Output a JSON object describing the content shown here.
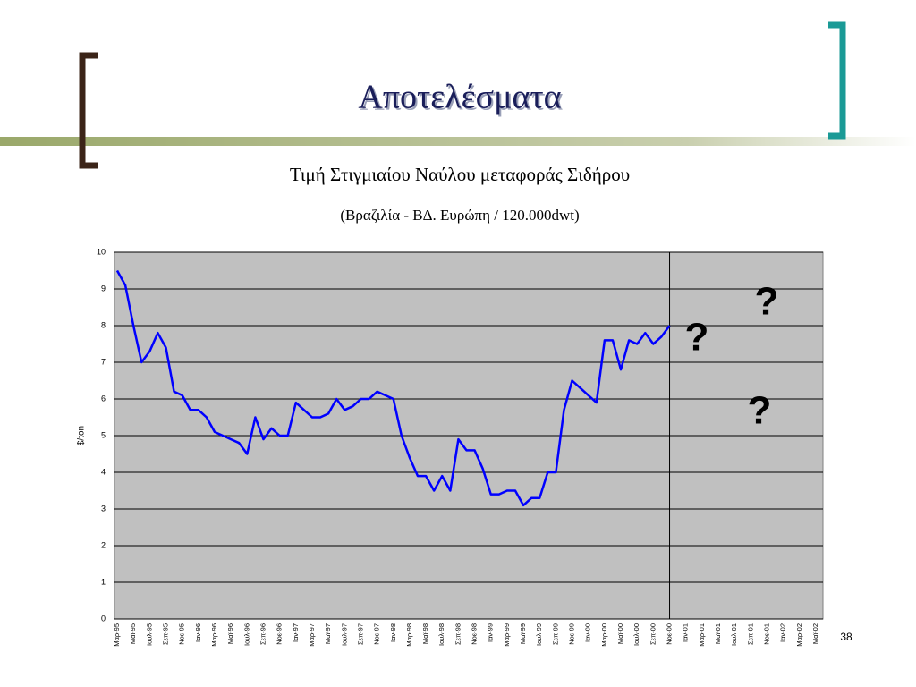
{
  "slide_title": "Αποτελέσματα",
  "slide_number": "38",
  "chart_data": {
    "type": "line",
    "title": "Τιμή Στιγμιαίου Ναύλου μεταφοράς Σιδήρου",
    "subtitle": "(Βραζιλία - ΒΔ. Ευρώπη / 120.000dwt)",
    "y_label": "$/ton",
    "categories": [
      "Μαρ-95",
      null,
      "Μαϊ-95",
      null,
      "Ιουλ-95",
      null,
      "Σεπ-95",
      null,
      "Νοε-95",
      null,
      "Ιαν-96",
      null,
      "Μαρ-96",
      null,
      "Μαϊ-96",
      null,
      "Ιουλ-96",
      null,
      "Σεπ-96",
      null,
      "Νοε-96",
      null,
      "Ιαν-97",
      null,
      "Μαρ-97",
      null,
      "Μαϊ-97",
      null,
      "Ιουλ-97",
      null,
      "Σεπ-97",
      null,
      "Νοε-97",
      null,
      "Ιαν-98",
      null,
      "Μαρ-98",
      null,
      "Μαϊ-98",
      null,
      "Ιουλ-98",
      null,
      "Σεπ-98",
      null,
      "Νοε-98",
      null,
      "Ιαν-99",
      null,
      "Μαρ-99",
      null,
      "Μαϊ-99",
      null,
      "Ιουλ-99",
      null,
      "Σεπ-99",
      null,
      "Νοε-99",
      null,
      "Ιαν-00",
      null,
      "Μαρ-00",
      null,
      "Μαϊ-00",
      null,
      "Ιουλ-00",
      null,
      "Σεπ-00",
      null,
      "Νοε-00",
      null,
      "Ιαν-01",
      null,
      "Μαρ-01",
      null,
      "Μαϊ-01",
      null,
      "Ιουλ-01",
      null,
      "Σεπ-01",
      null,
      "Νοε-01",
      null,
      "Ιαν-02",
      null,
      "Μαρ-02",
      null,
      "Μαϊ-02"
    ],
    "series": [
      {
        "name": null,
        "color": "#0000ff",
        "values": [
          9.5,
          9.1,
          8.0,
          7.0,
          7.3,
          7.8,
          7.4,
          6.2,
          6.1,
          5.7,
          5.7,
          5.5,
          5.1,
          5.0,
          4.9,
          4.8,
          4.5,
          5.5,
          4.9,
          5.2,
          5.0,
          5.0,
          5.9,
          5.7,
          5.5,
          5.5,
          5.6,
          6.0,
          5.7,
          5.8,
          6.0,
          6.0,
          6.2,
          6.1,
          6.0,
          5.0,
          4.4,
          3.9,
          3.9,
          3.5,
          3.9,
          3.5,
          4.9,
          4.6,
          4.6,
          4.1,
          3.4,
          3.4,
          3.5,
          3.5,
          3.1,
          3.3,
          3.3,
          4.0,
          4.0,
          5.7,
          6.5,
          6.3,
          6.1,
          5.9,
          7.6,
          7.6,
          6.8,
          7.6,
          7.5,
          7.8,
          7.5,
          7.7,
          8.0,
          null,
          null,
          null,
          null,
          null,
          null,
          null,
          null,
          null,
          null,
          null,
          null,
          null,
          null,
          null,
          null,
          null,
          null
        ]
      }
    ],
    "ylim": [
      0,
      10
    ],
    "yticks": [
      0,
      1,
      2,
      3,
      4,
      5,
      6,
      7,
      8,
      9,
      10
    ],
    "grid": true,
    "plot_background": "#c0c0c0",
    "annotations": [
      "?",
      "?",
      "?"
    ]
  }
}
